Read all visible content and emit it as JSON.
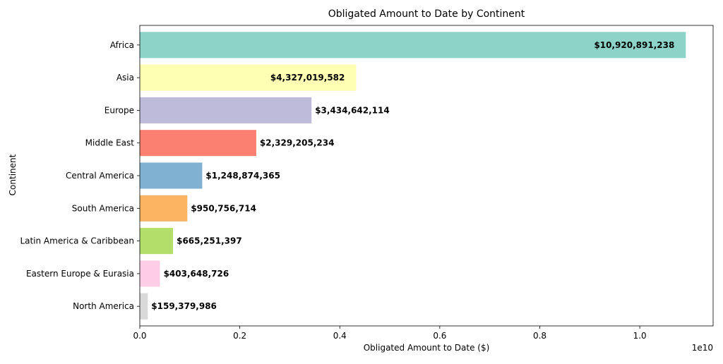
{
  "chart_data": {
    "type": "bar",
    "orientation": "horizontal",
    "title": "Obligated Amount to Date by Continent",
    "xlabel": "Obligated Amount to Date ($)",
    "ylabel": "Continent",
    "x_offset_label": "1e10",
    "x_scale": 10000000000,
    "xlim": [
      0,
      11466935800
    ],
    "xticks": [
      0,
      0.2,
      0.4,
      0.6,
      0.8,
      1.0
    ],
    "xtick_labels": [
      "0.0",
      "0.2",
      "0.4",
      "0.6",
      "0.8",
      "1.0"
    ],
    "grid": false,
    "categories": [
      "Africa",
      "Asia",
      "Europe",
      "Middle East",
      "Central America",
      "South America",
      "Latin America & Caribbean",
      "Eastern Europe & Eurasia",
      "North America"
    ],
    "values": [
      10920891238,
      4327019582,
      3434642114,
      2329205234,
      1248874365,
      950756714,
      665251397,
      403648726,
      159379986
    ],
    "value_labels": [
      "$10,920,891,238",
      "$4,327,019,582",
      "$3,434,642,114",
      "$2,329,205,234",
      "$1,248,874,365",
      "$950,756,714",
      "$665,251,397",
      "$403,648,726",
      "$159,379,986"
    ],
    "colors": [
      "#8dd3c7",
      "#ffffb3",
      "#bebada",
      "#fb8072",
      "#80b1d3",
      "#fdb462",
      "#b3de69",
      "#fccde5",
      "#d9d9d9"
    ]
  }
}
